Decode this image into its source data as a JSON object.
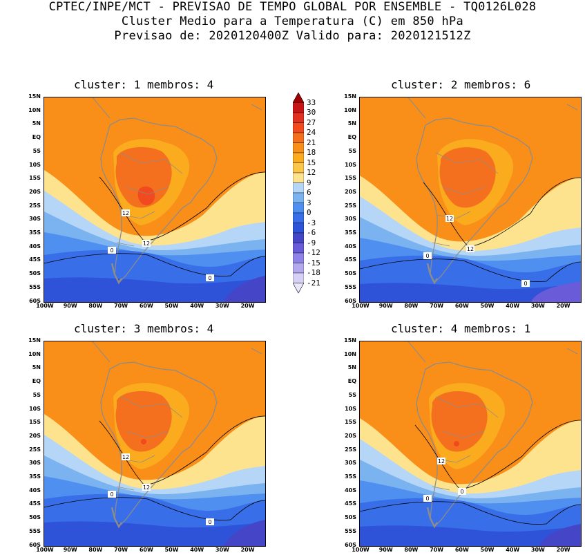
{
  "header": {
    "line1": "CPTEC/INPE/MCT - PREVISAO DE TEMPO GLOBAL POR ENSEMBLE - TQ0126L028",
    "line2": "Cluster Medio para a Temperatura (C) em 850 hPa",
    "line3": "Previsao de: 2020120400Z   Valido para: 2020121512Z"
  },
  "panels": [
    {
      "title": "cluster: 1  membros: 4",
      "labels": [
        "12",
        "12",
        "0",
        "0"
      ],
      "variant": 1
    },
    {
      "title": "cluster: 2  membros: 6",
      "labels": [
        "12",
        "12",
        "0",
        "0"
      ],
      "variant": 2
    },
    {
      "title": "cluster: 3  membros: 4",
      "labels": [
        "12",
        "12",
        "0",
        "0"
      ],
      "variant": 3
    },
    {
      "title": "cluster: 4  membros: 1",
      "labels": [
        "12",
        "0",
        "0"
      ],
      "variant": 4
    }
  ],
  "lat_ticks": [
    "15N",
    "10N",
    "5N",
    "EQ",
    "5S",
    "10S",
    "15S",
    "20S",
    "25S",
    "30S",
    "35S",
    "40S",
    "45S",
    "50S",
    "55S",
    "60S"
  ],
  "lon_ticks": [
    "100W",
    "90W",
    "80W",
    "70W",
    "60W",
    "50W",
    "40W",
    "30W",
    "20W"
  ],
  "colorbar": {
    "levels": [
      "33",
      "30",
      "27",
      "24",
      "21",
      "18",
      "15",
      "12",
      "9",
      "6",
      "3",
      "0",
      "-3",
      "-6",
      "-9",
      "-12",
      "-15",
      "-18",
      "-21"
    ],
    "colors": [
      "#a00000",
      "#c81414",
      "#e03020",
      "#f04a1e",
      "#f5701e",
      "#f98e18",
      "#fbab1e",
      "#fcc64a",
      "#fde38e",
      "#b5d6f7",
      "#7ab3ef",
      "#4f8ff0",
      "#386ee8",
      "#2e52d8",
      "#4545c8",
      "#6a5cd8",
      "#8f84e6",
      "#b3a9ef",
      "#d6d0f6",
      "#ece8fb"
    ]
  },
  "map_colors": {
    "c30": "#f98e18",
    "c21": "#fbab1e",
    "c18": "#f5701e",
    "c24": "#f04a1e",
    "c12": "#fde38e",
    "c9": "#b5d6f7",
    "c6": "#7ab3ef",
    "c3": "#4f8ff0",
    "c0": "#386ee8",
    "cm3": "#2e52d8",
    "cm6": "#4545c8",
    "cm9": "#6a5cd8",
    "land": "#8c8c8c"
  }
}
